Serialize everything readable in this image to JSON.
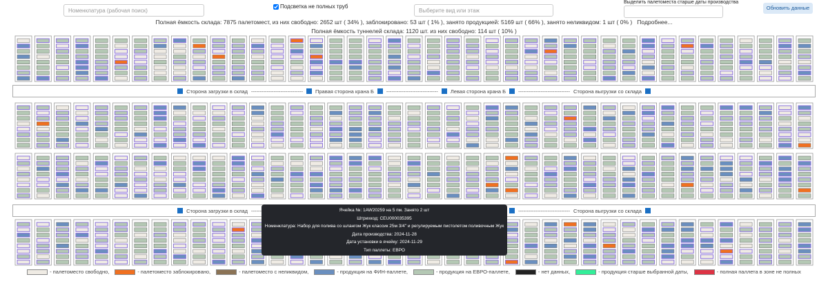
{
  "controls": {
    "search_placeholder": "Номенклатура (рабочая поиск)",
    "highlight_label": "Подсветка не полных труб",
    "view_placeholder": "Выберите вид или этаж",
    "date_label": "Выделить палетоместа старше даты производства",
    "refresh_button": "Обновить данные"
  },
  "stats": {
    "line1": "Полная ёмкость склада: 7875 палетомест, из них свободно: 2652 шт ( 34% ), заблокировано: 53 шт ( 1% ), занято продукцией: 5169 шт ( 66% ), занято неликвидом: 1 шт ( 0% )",
    "more": "Подробнее...",
    "line2": "Полная ёмкость туннелей склада: 1120 шт. из них свободно: 114 шт ( 10% )"
  },
  "separator": {
    "labels": [
      "Сторона загрузки в склад",
      "Правая сторона крана Б",
      "Левая сторона крана Б",
      "Сторона выгрузки со склада"
    ],
    "dashes": "------------------------------"
  },
  "tooltip": {
    "lines": [
      "Ячейка №: 1AW20259 на 5 пм. Занято 2 шт",
      "Штрихкод: CEU000035395",
      "Номенклатура: Набор для полива со шлангом Жук классик 25м 3/4\" и регулируемым пистолетом поливочным Жук",
      "Дата производства: 2024-11-28",
      "Дата установки в ячейку: 2024-11-29",
      "Тип паллеты: ЕВРО"
    ]
  },
  "legend": [
    {
      "label": "- палетоместо свободно,",
      "color": "#efebe4"
    },
    {
      "label": "- палетоместо заблокировано,",
      "color": "#f07020"
    },
    {
      "label": "- палетоместо с неликвидом,",
      "color": "#8b7355"
    },
    {
      "label": "- продукция на ФИН-паллете,",
      "color": "#6a8fbf"
    },
    {
      "label": "- продукция на ЕВРО-паллете,",
      "color": "#b4c8b4"
    },
    {
      "label": "- нет данных,",
      "color": "#222222"
    },
    {
      "label": "- продукция старше выбранной даты,",
      "color": "#33ee99"
    },
    {
      "label": "- полная паллета в зоне не полных",
      "color": "#dd3344"
    }
  ]
}
